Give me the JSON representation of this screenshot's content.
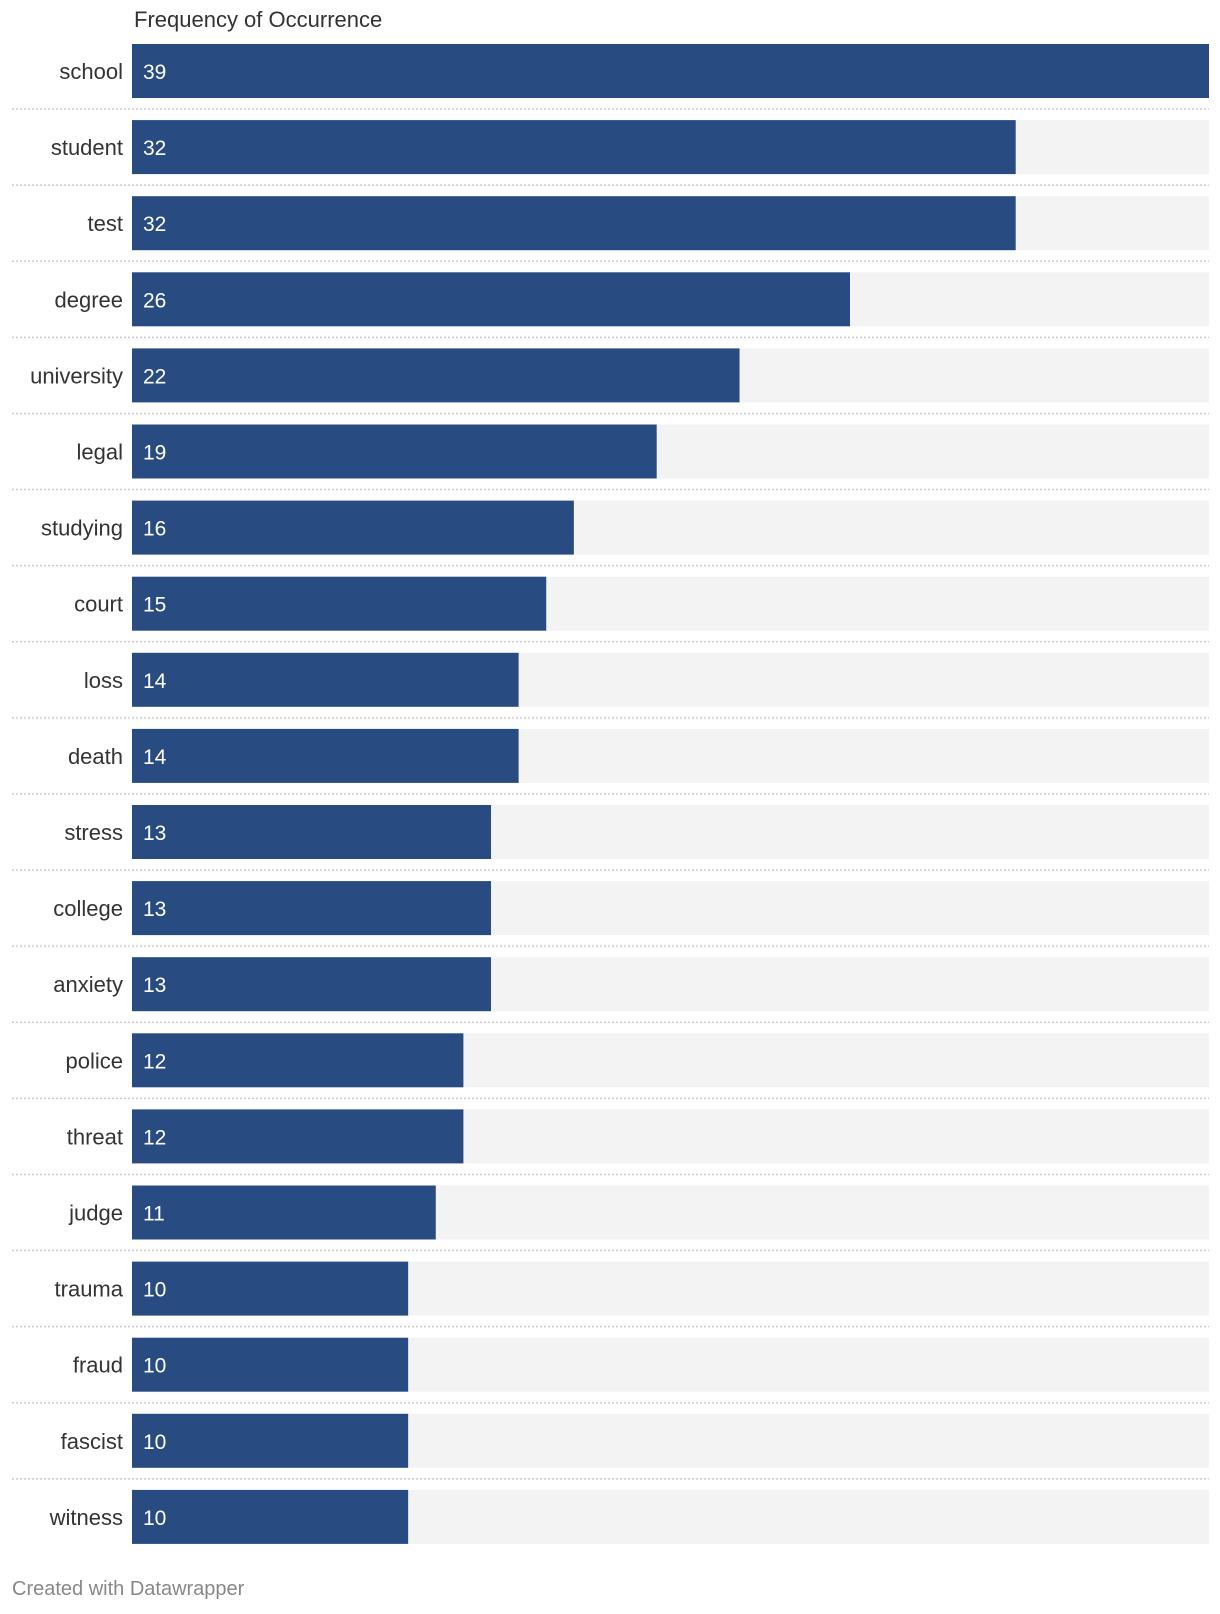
{
  "chart_data": {
    "type": "bar",
    "orientation": "horizontal",
    "column_header": "Frequency of Occurrence",
    "categories": [
      "school",
      "student",
      "test",
      "degree",
      "university",
      "legal",
      "studying",
      "court",
      "loss",
      "death",
      "stress",
      "college",
      "anxiety",
      "police",
      "threat",
      "judge",
      "trauma",
      "fraud",
      "fascist",
      "witness"
    ],
    "values": [
      39,
      32,
      32,
      26,
      22,
      19,
      16,
      15,
      14,
      14,
      13,
      13,
      13,
      12,
      12,
      11,
      10,
      10,
      10,
      10
    ],
    "xlim": [
      0,
      39
    ],
    "bar_color": "#284b82",
    "track_color": "#f3f3f3",
    "grid": false
  },
  "footer": {
    "credit": "Created with Datawrapper"
  }
}
